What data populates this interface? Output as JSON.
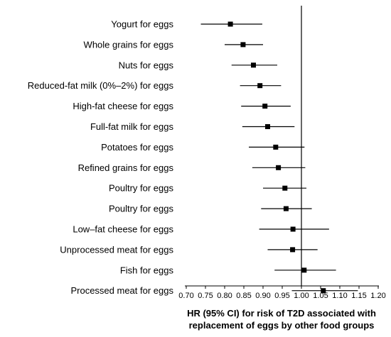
{
  "chart_data": {
    "type": "forest",
    "title": "",
    "xlabel": [
      "HR (95% CI) for risk of T2D associated with",
      "replacement of eggs by other food groups"
    ],
    "ylabel": "",
    "xlim": [
      0.7,
      1.2
    ],
    "xticks": [
      "0.70",
      "0.75",
      "0.80",
      "0.85",
      "0.90",
      "0.95",
      "1.00",
      "1.05",
      "1.10",
      "1.15",
      "1.20"
    ],
    "reference_line": 1.0,
    "grid": false,
    "marker_color": "#000000",
    "rows": [
      {
        "label": "Yogurt for eggs",
        "hr": 0.815,
        "lower": 0.738,
        "upper": 0.898
      },
      {
        "label": "Whole grains for eggs",
        "hr": 0.848,
        "lower": 0.8,
        "upper": 0.9
      },
      {
        "label": "Nuts for eggs",
        "hr": 0.875,
        "lower": 0.818,
        "upper": 0.937
      },
      {
        "label": "Reduced-fat milk (0%–2%) for eggs",
        "hr": 0.892,
        "lower": 0.84,
        "upper": 0.947
      },
      {
        "label": "High-fat cheese for eggs",
        "hr": 0.905,
        "lower": 0.843,
        "upper": 0.972
      },
      {
        "label": "Full-fat milk for eggs",
        "hr": 0.912,
        "lower": 0.846,
        "upper": 0.982
      },
      {
        "label": "Potatoes for eggs",
        "hr": 0.933,
        "lower": 0.863,
        "upper": 1.008
      },
      {
        "label": "Refined grains for eggs",
        "hr": 0.94,
        "lower": 0.872,
        "upper": 1.01
      },
      {
        "label": "Poultry for eggs",
        "hr": 0.957,
        "lower": 0.9,
        "upper": 1.013
      },
      {
        "label": "Poultry for eggs",
        "hr": 0.96,
        "lower": 0.895,
        "upper": 1.027
      },
      {
        "label": "Low–fat cheese for eggs",
        "hr": 0.978,
        "lower": 0.89,
        "upper": 1.072
      },
      {
        "label": "Unprocessed meat for eggs",
        "hr": 0.977,
        "lower": 0.912,
        "upper": 1.042
      },
      {
        "label": "Fish for eggs",
        "hr": 1.007,
        "lower": 0.93,
        "upper": 1.09
      },
      {
        "label": "Processed meat for eggs",
        "hr": 1.057,
        "lower": 0.975,
        "upper": 1.147
      }
    ]
  }
}
